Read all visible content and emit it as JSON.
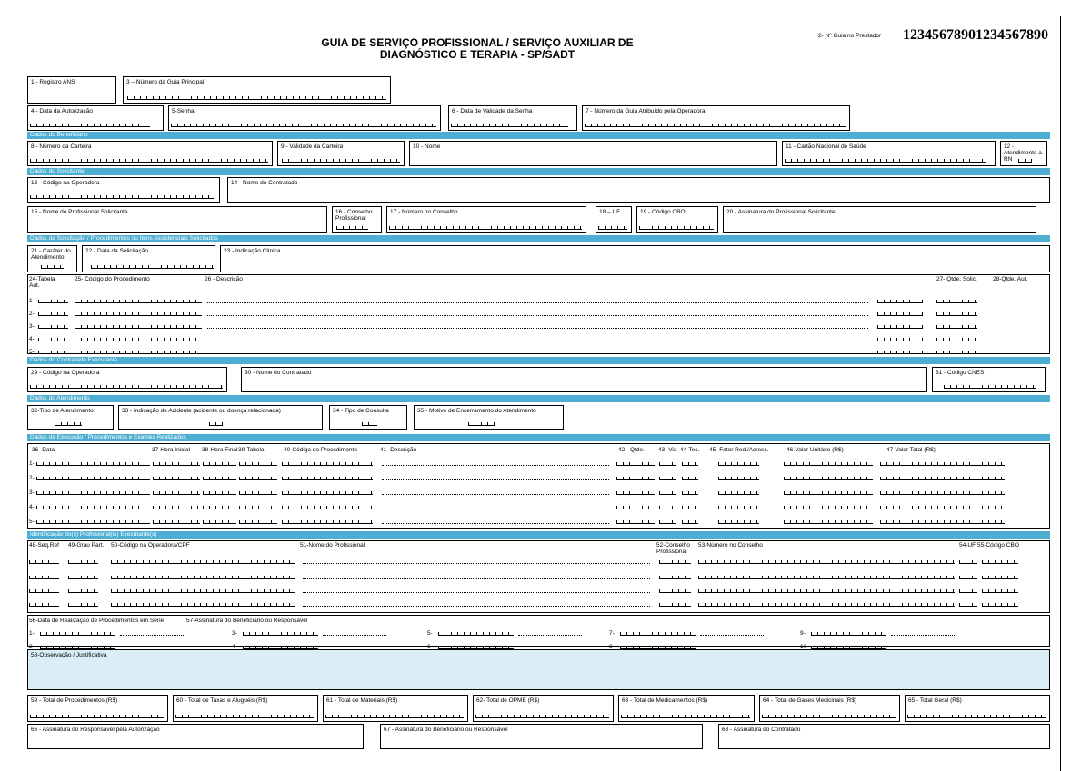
{
  "header": {
    "title_line1": "GUIA DE SERVIÇO PROFISSIONAL / SERVIÇO AUXILIAR DE",
    "title_line2": "DIAGNÓSTICO E TERAPIA - SP/SADT",
    "guide_label": "2- Nº Guia no Prestador",
    "guide_number": "12345678901234567890"
  },
  "sections": [
    "Dados do Beneficiário",
    "Dados do Solicitante",
    "Dados da Solicitação / Procedimentos ou Itens Assistenciais Solicitados",
    "Dados do Contratado Executante",
    "Dados do Atendimento",
    "Dados da Execução / Procedimentos e Exames Realizados",
    "Identificação do(s) Profissional(is) Executante(s)"
  ],
  "fields": [
    "1 - Registro ANS",
    "3 – Número da Guia Principal",
    "4 - Data da Autorização",
    "5-Senha",
    "6 - Data de Validade da Senha",
    "7 - Número da Guia Atribuído pela Operadora",
    "8 - Número da Carteira",
    "9 - Validade da Carteira",
    "10 - Nome",
    "11 - Cartão Nacional de Saúde",
    "12 - Atendimento a RN",
    "13 - Código na Operadora",
    "14 - Nome do Contratado",
    "15 - Nome do Profissional Solicitante",
    "16 - Conselho Profissional",
    "17 - Número no Conselho",
    "18 – UF",
    "19 - Código CBO",
    "20 - Assinatura do Profissional Solicitante",
    "21 - Caráter do Atendimento",
    "22 - Data da Solicitação",
    "23 - Indicação Clínica",
    "29 - Código na Operadora",
    "30 - Nome do Contratado",
    "31 - Código CNES",
    "32-Tipo de Atendimento",
    "33 - Indicação de Acidente (acidente ou doença relacionada)",
    "34 - Tipo de Consulta",
    "35 - Motivo de Encerramento do Atendimento",
    "58-Observação / Justificativa",
    "59 - Total de Procedimentos (R$)",
    "60 - Total de Taxas e Aluguéis (R$)",
    "61 - Total de Materiais (R$)",
    "62- Total de OPME (R$)",
    "63 - Total de Medicamentos (R$)",
    "64 - Total de Gases Medicinais (R$)",
    "65 - Total Geral (R$)",
    "66 - Assinatura do Responsável pela Autorização",
    "67 - Assinatura do Beneficiário ou Responsável",
    "68 - Assinatura do Contratado"
  ],
  "requested": {
    "headers": [
      "24-Tabela Aut.",
      "25- Código do Procedimento",
      "26 - Descrição",
      "27- Qtde. Solic.",
      "28-Qtde. Aut."
    ],
    "rows": [
      "1-",
      "2-",
      "3-",
      "4-",
      "5-"
    ]
  },
  "performed": {
    "headers": [
      "36- Data",
      "37-Hora Inicial",
      "38-Hora Final",
      "39-Tabela",
      "40-Código do Procedimento",
      "41- Descrição",
      "42 - Qtde.",
      "43- Via",
      "44-Tec.",
      "45- Fator Red./Acresc.",
      "46-Valor Unitário (R$)",
      "47-Valor Total (R$)"
    ],
    "rows": [
      "1-",
      "2-",
      "3-",
      "4-",
      "5-"
    ]
  },
  "professionals": {
    "headers": [
      "48-Seq.Ref",
      "49-Grau Part.",
      "50-Código na Operadora/CPF",
      "51-Nome do Profissional",
      "52-Conselho Profissional",
      "53-Número no Conselho",
      "54-UF",
      "55-Código CBO"
    ]
  },
  "series": {
    "headers": [
      "56-Data de Realização de Procedimentos em Série",
      "57-Assinatura do Beneficiário ou Responsável"
    ],
    "items": [
      "1-",
      "2-",
      "3-",
      "4-",
      "5-",
      "6-",
      "7-",
      "8-",
      "9-",
      "10-"
    ]
  }
}
